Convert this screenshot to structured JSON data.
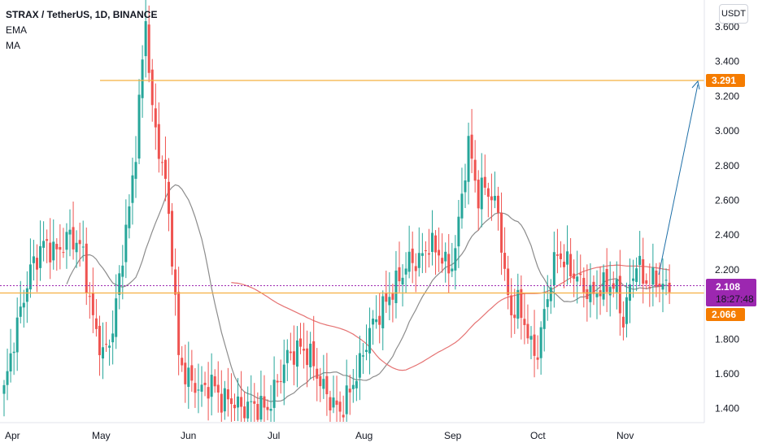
{
  "legend": {
    "symbol_line": "STRAX / TetherUS, 1D, BINANCE",
    "ema_label": "EMA",
    "ma_label": "MA"
  },
  "price_axis": {
    "currency": "USDT",
    "ticks": [
      "3.600",
      "3.400",
      "3.200",
      "3.000",
      "2.800",
      "2.600",
      "2.400",
      "2.200",
      "1.800",
      "1.600",
      "1.400"
    ],
    "tick_values": [
      3.6,
      3.4,
      3.2,
      3.0,
      2.8,
      2.6,
      2.4,
      2.2,
      1.8,
      1.6,
      1.4
    ]
  },
  "time_axis": {
    "labels": [
      "Apr",
      "May",
      "Jun",
      "Jul",
      "Aug",
      "Sep",
      "Oct",
      "Nov"
    ]
  },
  "badges": {
    "target": {
      "text": "3.291",
      "value": 3.291,
      "color": "#f57c00"
    },
    "last": {
      "text": "2.108",
      "value": 2.108,
      "color": "#9c27b0"
    },
    "countdown": {
      "text": "18:27:48",
      "color": "#9c27b0"
    },
    "support": {
      "text": "2.066",
      "value": 2.066,
      "color": "#f57c00"
    }
  },
  "colors": {
    "up": "#26a69a",
    "down": "#ef5350",
    "ema": "#8c8c8c",
    "ma": "#e57373",
    "level": "#f5b041",
    "arrow": "#1e6fa8"
  },
  "chart_data": {
    "type": "candlestick",
    "title": "STRAX / TetherUS, 1D, BINANCE",
    "ylim": [
      1.35,
      3.68
    ],
    "horizontal_levels": [
      3.291,
      2.066
    ],
    "last_price": 2.108,
    "months": [
      "Apr",
      "May",
      "Jun",
      "Jul",
      "Aug",
      "Sep",
      "Oct",
      "Nov"
    ],
    "close_keypoints": [
      [
        0,
        1.5
      ],
      [
        3,
        1.8
      ],
      [
        8,
        2.2
      ],
      [
        12,
        2.35
      ],
      [
        16,
        2.3
      ],
      [
        20,
        2.4
      ],
      [
        24,
        2.3
      ],
      [
        26,
        2.0
      ],
      [
        30,
        1.7
      ],
      [
        33,
        1.85
      ],
      [
        36,
        2.3
      ],
      [
        38,
        2.55
      ],
      [
        40,
        2.9
      ],
      [
        42,
        3.4
      ],
      [
        43,
        3.65
      ],
      [
        45,
        3.1
      ],
      [
        47,
        2.9
      ],
      [
        49,
        2.7
      ],
      [
        51,
        2.3
      ],
      [
        53,
        1.7
      ],
      [
        55,
        1.6
      ],
      [
        57,
        1.55
      ],
      [
        60,
        1.5
      ],
      [
        63,
        1.55
      ],
      [
        66,
        1.45
      ],
      [
        69,
        1.45
      ],
      [
        72,
        1.4
      ],
      [
        75,
        1.42
      ],
      [
        80,
        1.4
      ],
      [
        83,
        1.55
      ],
      [
        86,
        1.7
      ],
      [
        90,
        1.75
      ],
      [
        93,
        1.7
      ],
      [
        96,
        1.55
      ],
      [
        99,
        1.45
      ],
      [
        102,
        1.38
      ],
      [
        105,
        1.5
      ],
      [
        108,
        1.65
      ],
      [
        111,
        1.85
      ],
      [
        114,
        1.95
      ],
      [
        117,
        2.05
      ],
      [
        120,
        2.15
      ],
      [
        123,
        2.25
      ],
      [
        126,
        2.25
      ],
      [
        129,
        2.35
      ],
      [
        132,
        2.3
      ],
      [
        135,
        2.2
      ],
      [
        137,
        2.3
      ],
      [
        139,
        2.65
      ],
      [
        141,
        2.9
      ],
      [
        142,
        2.85
      ],
      [
        144,
        2.6
      ],
      [
        146,
        2.7
      ],
      [
        148,
        2.6
      ],
      [
        150,
        2.55
      ],
      [
        152,
        2.15
      ],
      [
        154,
        1.95
      ],
      [
        156,
        2.0
      ],
      [
        158,
        1.9
      ],
      [
        160,
        1.75
      ],
      [
        162,
        1.72
      ],
      [
        164,
        1.95
      ],
      [
        166,
        2.15
      ],
      [
        168,
        2.3
      ],
      [
        170,
        2.25
      ],
      [
        172,
        2.2
      ],
      [
        174,
        2.15
      ],
      [
        176,
        2.1
      ],
      [
        178,
        2.05
      ],
      [
        180,
        2.08
      ],
      [
        182,
        2.1
      ],
      [
        184,
        2.12
      ],
      [
        186,
        2.08
      ],
      [
        188,
        1.9
      ],
      [
        190,
        2.1
      ],
      [
        192,
        2.25
      ],
      [
        194,
        2.15
      ],
      [
        196,
        2.12
      ],
      [
        198,
        2.15
      ],
      [
        200,
        2.1
      ],
      [
        202,
        2.108
      ]
    ]
  }
}
